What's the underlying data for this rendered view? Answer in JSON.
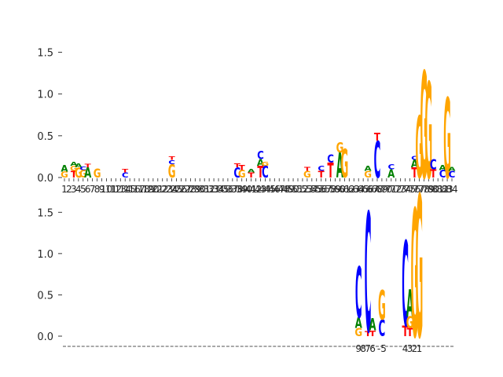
{
  "chart_data": [
    {
      "type": "sequence-logo",
      "panel": "top",
      "ylim": [
        0,
        1.75
      ],
      "yticks": [
        "0.0",
        "0.5",
        "1.0",
        "1.5"
      ],
      "ytick_values": [
        0,
        0.5,
        1.0,
        1.5
      ],
      "grid": false,
      "xtick_labels": [
        "1",
        "2",
        "3",
        "4",
        "5",
        "6",
        "7",
        "8",
        "9",
        "10",
        "11",
        "12",
        "13",
        "14",
        "15",
        "16",
        "17",
        "18",
        "19",
        "20",
        "21",
        "22",
        "23",
        "24",
        "25",
        "26",
        "27",
        "28",
        "29",
        "30",
        "31",
        "32",
        "33",
        "34",
        "35",
        "36",
        "37",
        "38",
        "39",
        "40",
        "41",
        "42",
        "43",
        "44",
        "45",
        "46",
        "47",
        "48",
        "49",
        "50",
        "51",
        "52",
        "53",
        "54",
        "55",
        "56",
        "57",
        "58",
        "59",
        "60",
        "61",
        "62",
        "63",
        "64",
        "65",
        "66",
        "67",
        "68",
        "69",
        "70",
        "71",
        "72",
        "73",
        "74",
        "75",
        "76",
        "77",
        "78",
        "79",
        "80",
        "81",
        "82",
        "83",
        "84"
      ],
      "positions": [
        {
          "pos": 1,
          "letters": [
            {
              "b": "G",
              "h": 0.07
            },
            {
              "b": "A",
              "h": 0.08
            }
          ]
        },
        {
          "pos": 3,
          "letters": [
            {
              "b": "T",
              "h": 0.08
            },
            {
              "b": "G",
              "h": 0.06
            },
            {
              "b": "A",
              "h": 0.05
            }
          ]
        },
        {
          "pos": 4,
          "letters": [
            {
              "b": "G",
              "h": 0.12
            },
            {
              "b": "A",
              "h": 0.05
            }
          ]
        },
        {
          "pos": 5,
          "letters": [
            {
              "b": "G",
              "h": 0.09
            },
            {
              "b": "C",
              "h": 0.04
            }
          ]
        },
        {
          "pos": 6,
          "letters": [
            {
              "b": "A",
              "h": 0.12
            },
            {
              "b": "T",
              "h": 0.04
            }
          ]
        },
        {
          "pos": 8,
          "letters": [
            {
              "b": "G",
              "h": 0.11
            }
          ]
        },
        {
          "pos": 14,
          "letters": [
            {
              "b": "C",
              "h": 0.06
            },
            {
              "b": "T",
              "h": 0.04
            }
          ]
        },
        {
          "pos": 24,
          "letters": [
            {
              "b": "G",
              "h": 0.16
            },
            {
              "b": "C",
              "h": 0.05
            },
            {
              "b": "T",
              "h": 0.04
            }
          ]
        },
        {
          "pos": 38,
          "letters": [
            {
              "b": "C",
              "h": 0.12
            },
            {
              "b": "T",
              "h": 0.05
            }
          ]
        },
        {
          "pos": 39,
          "letters": [
            {
              "b": "G",
              "h": 0.09
            },
            {
              "b": "T",
              "h": 0.06
            }
          ]
        },
        {
          "pos": 41,
          "letters": [
            {
              "b": "T",
              "h": 0.06
            },
            {
              "b": "A",
              "h": 0.04
            }
          ]
        },
        {
          "pos": 43,
          "letters": [
            {
              "b": "T",
              "h": 0.14
            },
            {
              "b": "A",
              "h": 0.08
            },
            {
              "b": "C",
              "h": 0.1
            }
          ]
        },
        {
          "pos": 44,
          "letters": [
            {
              "b": "C",
              "h": 0.14
            },
            {
              "b": "G",
              "h": 0.05
            }
          ]
        },
        {
          "pos": 53,
          "letters": [
            {
              "b": "G",
              "h": 0.08
            },
            {
              "b": "T",
              "h": 0.05
            }
          ]
        },
        {
          "pos": 56,
          "letters": [
            {
              "b": "T",
              "h": 0.08
            },
            {
              "b": "C",
              "h": 0.06
            }
          ]
        },
        {
          "pos": 58,
          "letters": [
            {
              "b": "T",
              "h": 0.18
            },
            {
              "b": "C",
              "h": 0.1
            }
          ]
        },
        {
          "pos": 60,
          "letters": [
            {
              "b": "A",
              "h": 0.3
            },
            {
              "b": "G",
              "h": 0.12
            }
          ]
        },
        {
          "pos": 61,
          "letters": [
            {
              "b": "G",
              "h": 0.34
            }
          ]
        },
        {
          "pos": 66,
          "letters": [
            {
              "b": "G",
              "h": 0.08
            },
            {
              "b": "A",
              "h": 0.06
            }
          ]
        },
        {
          "pos": 68,
          "letters": [
            {
              "b": "C",
              "h": 0.44
            },
            {
              "b": "T",
              "h": 0.09
            }
          ]
        },
        {
          "pos": 71,
          "letters": [
            {
              "b": "A",
              "h": 0.1
            },
            {
              "b": "C",
              "h": 0.06
            }
          ]
        },
        {
          "pos": 76,
          "letters": [
            {
              "b": "T",
              "h": 0.12
            },
            {
              "b": "A",
              "h": 0.09
            },
            {
              "b": "C",
              "h": 0.05
            }
          ]
        },
        {
          "pos": 77,
          "letters": [
            {
              "b": "G",
              "h": 0.74
            }
          ]
        },
        {
          "pos": 78,
          "letters": [
            {
              "b": "G",
              "h": 1.28
            }
          ]
        },
        {
          "pos": 79,
          "letters": [
            {
              "b": "G",
              "h": 1.15
            }
          ]
        },
        {
          "pos": 80,
          "letters": [
            {
              "b": "T",
              "h": 0.1
            },
            {
              "b": "C",
              "h": 0.12
            }
          ]
        },
        {
          "pos": 82,
          "letters": [
            {
              "b": "C",
              "h": 0.09
            },
            {
              "b": "A",
              "h": 0.06
            }
          ]
        },
        {
          "pos": 83,
          "letters": [
            {
              "b": "G",
              "h": 0.96
            }
          ]
        },
        {
          "pos": 84,
          "letters": [
            {
              "b": "C",
              "h": 0.08
            },
            {
              "b": "A",
              "h": 0.05
            }
          ]
        }
      ]
    },
    {
      "type": "sequence-logo",
      "panel": "bottom",
      "ylim": [
        0,
        1.75
      ],
      "yticks": [
        "0.0",
        "0.5",
        "1.0",
        "1.5"
      ],
      "ytick_values": [
        0,
        0.5,
        1.0,
        1.5
      ],
      "grid": false,
      "xtick_labels": [
        "9",
        "8",
        "7",
        "6",
        "-5",
        "4",
        "3",
        "2",
        "1"
      ],
      "xtick_positions": [
        64,
        65,
        66,
        67,
        69,
        74,
        75,
        76,
        77
      ],
      "positions": [
        {
          "pos": 64,
          "letters": [
            {
              "b": "G",
              "h": 0.1
            },
            {
              "b": "A",
              "h": 0.13
            },
            {
              "b": "C",
              "h": 0.62
            }
          ]
        },
        {
          "pos": 66,
          "letters": [
            {
              "b": "T",
              "h": 0.06
            },
            {
              "b": "C",
              "h": 1.45
            }
          ]
        },
        {
          "pos": 67,
          "letters": [
            {
              "b": "T",
              "h": 0.07
            },
            {
              "b": "A",
              "h": 0.15
            }
          ]
        },
        {
          "pos": 69,
          "letters": [
            {
              "b": "C",
              "h": 0.2
            },
            {
              "b": "G",
              "h": 0.36
            }
          ]
        },
        {
          "pos": 74,
          "letters": [
            {
              "b": "T",
              "h": 0.13
            },
            {
              "b": "C",
              "h": 1.03
            }
          ]
        },
        {
          "pos": 75,
          "letters": [
            {
              "b": "T",
              "h": 0.1
            },
            {
              "b": "G",
              "h": 0.14
            },
            {
              "b": "A",
              "h": 0.33
            }
          ]
        },
        {
          "pos": 76,
          "letters": [
            {
              "b": "G",
              "h": 1.55
            }
          ]
        },
        {
          "pos": 77,
          "letters": [
            {
              "b": "G",
              "h": 1.72
            }
          ]
        }
      ]
    }
  ],
  "colors": {
    "A": "#008000",
    "C": "#0000ff",
    "G": "#ffa500",
    "T": "#ff0000",
    "axis": "#262626"
  }
}
